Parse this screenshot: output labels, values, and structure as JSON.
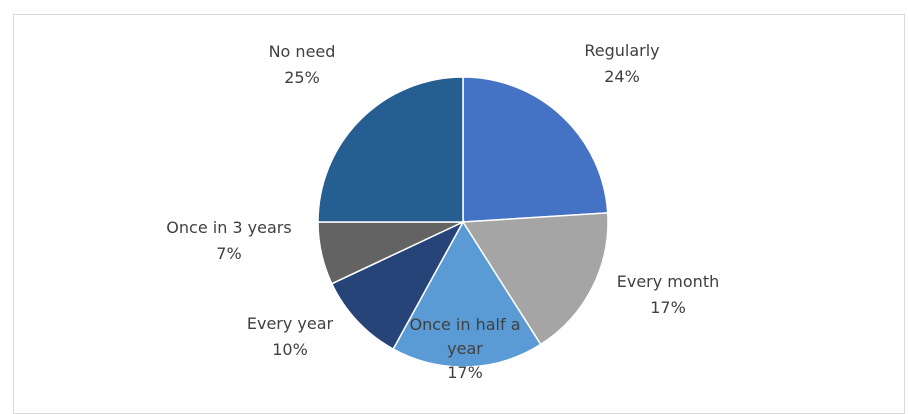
{
  "chart_data": {
    "type": "pie",
    "title": "",
    "slices": [
      {
        "label": "Regularly",
        "percent_label": "24%",
        "value": 24,
        "color": "#4472c4"
      },
      {
        "label": "Every month",
        "percent_label": "17%",
        "value": 17,
        "color": "#a5a5a5"
      },
      {
        "label": "Once in half a year",
        "percent_label": "17%",
        "value": 17,
        "color": "#5b9bd5"
      },
      {
        "label": "Every year",
        "percent_label": "10%",
        "value": 10,
        "color": "#264478"
      },
      {
        "label": "Once in 3 years",
        "percent_label": "7%",
        "value": 7,
        "color": "#636363"
      },
      {
        "label": "No need",
        "percent_label": "25%",
        "value": 25,
        "color": "#255e91"
      }
    ],
    "legend": "none",
    "data_labels": "outside"
  }
}
